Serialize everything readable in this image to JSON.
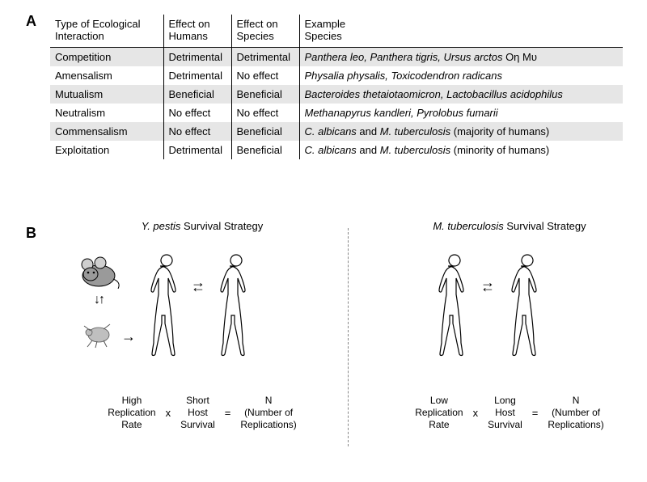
{
  "panelA": {
    "label": "A",
    "headers": {
      "type": "Type of Ecological\nInteraction",
      "humans": "Effect on\nHumans",
      "species": "Effect on\nSpecies",
      "example": "Example\nSpecies"
    },
    "rows": [
      {
        "type": "Competition",
        "humans": "Detrimental",
        "species": "Detrimental",
        "example_italic": "Panthera leo, Panthera tigris, Ursus arctos",
        "example_tail": " Οη Μυ",
        "shaded": true
      },
      {
        "type": "Amensalism",
        "humans": "Detrimental",
        "species": "No effect",
        "example_italic": "Physalia physalis, Toxicodendron radicans",
        "example_tail": "",
        "shaded": false
      },
      {
        "type": "Mutualism",
        "humans": "Beneficial",
        "species": "Beneficial",
        "example_italic": "Bacteroides thetaiotaomicron, Lactobacillus acidophilus",
        "example_tail": "",
        "shaded": true
      },
      {
        "type": "Neutralism",
        "humans": "No effect",
        "species": "No effect",
        "example_italic": "Methanapyrus kandleri, Pyrolobus fumarii",
        "example_tail": "",
        "shaded": false
      },
      {
        "type": "Commensalism",
        "humans": "No effect",
        "species": "Beneficial",
        "example_italic": "C. albicans",
        "example_tail": " and ",
        "example_italic2": "M. tuberculosis",
        "example_tail2": " (majority of humans)",
        "shaded": true
      },
      {
        "type": "Exploitation",
        "humans": "Detrimental",
        "species": "Beneficial",
        "example_italic": "C. albicans",
        "example_tail": " and ",
        "example_italic2": "M. tuberculosis",
        "example_tail2": " (minority of humans)",
        "shaded": false
      }
    ]
  },
  "panelB": {
    "label": "B",
    "left": {
      "title_italic": "Y. pestis",
      "title_rest": " Survival Strategy",
      "eq": {
        "t1a": "High",
        "t1b": "Replication",
        "t1c": "Rate",
        "t2a": "Short",
        "t2b": "Host",
        "t2c": "Survival",
        "t3a": "N",
        "t3b": "(Number of",
        "t3c": "Replications)"
      }
    },
    "right": {
      "title_italic": "M. tuberculosis",
      "title_rest": " Survival Strategy",
      "eq": {
        "t1a": "Low",
        "t1b": "Replication",
        "t1c": "Rate",
        "t2a": "Long",
        "t2b": "Host",
        "t2c": "Survival",
        "t3a": "N",
        "t3b": "(Number of",
        "t3c": "Replications)"
      }
    },
    "ops": {
      "times": "x",
      "eq": "="
    }
  },
  "colors": {
    "shade": "#e6e6e6",
    "mouse_body": "#9a9a9a",
    "mouse_ear": "#cfcfcf",
    "flea": "#bfbfbf",
    "line": "#000000"
  }
}
